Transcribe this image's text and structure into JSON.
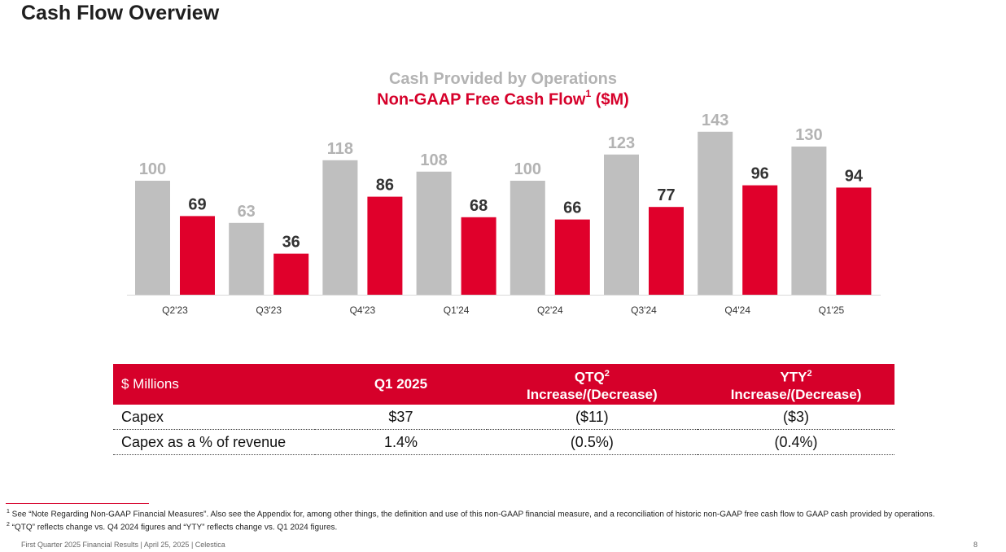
{
  "page": {
    "title": "Cash Flow Overview",
    "footer": "First Quarter 2025 Financial Results |  April 25, 2025  |  Celestica",
    "page_number": "8"
  },
  "chart_data": {
    "type": "bar",
    "title": "Cash Provided by Operations",
    "subtitle": "Non-GAAP Free Cash Flow",
    "subtitle_sup": "1",
    "subtitle_unit": " ($M)",
    "categories": [
      "Q2'23",
      "Q3'23",
      "Q4'23",
      "Q1'24",
      "Q2'24",
      "Q3'24",
      "Q4'24",
      "Q1'25"
    ],
    "series": [
      {
        "name": "Cash Provided by Operations",
        "color": "#bfbfbf",
        "label_color": "#b3b3b3",
        "values": [
          100,
          63,
          118,
          108,
          100,
          123,
          143,
          130
        ]
      },
      {
        "name": "Non-GAAP Free Cash Flow",
        "color": "#e0002b",
        "label_color": "#333333",
        "values": [
          69,
          36,
          86,
          68,
          66,
          77,
          96,
          94
        ]
      }
    ],
    "ylim": [
      0,
      150
    ],
    "grid": false,
    "xlabel": "",
    "ylabel": ""
  },
  "table": {
    "headers": {
      "col0": "$ Millions",
      "col1": "Q1 2025",
      "col2_line1": "QTQ",
      "col2_sup": "2",
      "col2_line2": "Increase/(Decrease)",
      "col3_line1": "YTY",
      "col3_sup": "2",
      "col3_line2": "Increase/(Decrease)"
    },
    "rows": [
      {
        "label": "Capex",
        "q1": "$37",
        "qtq": "($11)",
        "yty": "($3)"
      },
      {
        "label": "Capex as a % of revenue",
        "q1": "1.4%",
        "qtq": "(0.5%)",
        "yty": "(0.4%)"
      }
    ]
  },
  "footnotes": [
    {
      "num": "1",
      "text": " See “Note Regarding Non-GAAP Financial Measures”. Also see the Appendix for, among other things, the definition and use of this non-GAAP financial measure, and a reconciliation of historic non-GAAP free cash flow to GAAP cash provided by operations."
    },
    {
      "num": "2",
      "text": " “QTQ” reflects change vs. Q4 2024 figures and “YTY” reflects change vs. Q1 2024 figures."
    }
  ]
}
